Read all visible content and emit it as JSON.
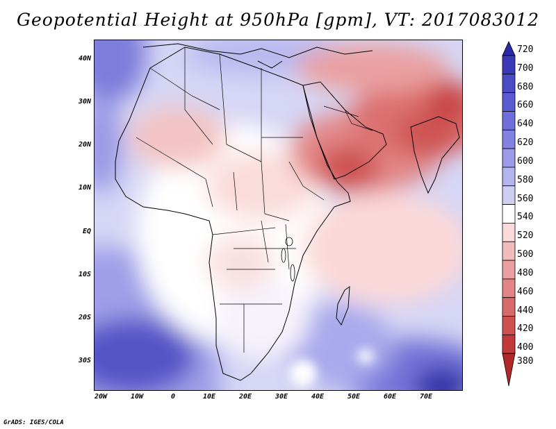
{
  "title": "Geopotential Height at 950hPa [gpm], VT: 2017083012",
  "credit": "GrADS: IGES/COLA",
  "map": {
    "region": "Africa and Arabian Peninsula",
    "lon_range": [
      -22,
      80
    ],
    "lat_range": [
      -37,
      45
    ],
    "lat_labels": [
      "40N",
      "30N",
      "20N",
      "10N",
      "EQ",
      "10S",
      "20S",
      "30S"
    ],
    "lon_labels": [
      "20W",
      "10W",
      "0",
      "10E",
      "20E",
      "30E",
      "40E",
      "50E",
      "60E",
      "70E"
    ]
  },
  "colorbar": {
    "levels": [
      "720",
      "700",
      "680",
      "660",
      "640",
      "620",
      "600",
      "580",
      "560",
      "540",
      "520",
      "500",
      "480",
      "460",
      "440",
      "420",
      "400",
      "380"
    ],
    "colors": [
      "#2a2aa6",
      "#3a3ab8",
      "#4b4bc6",
      "#5c5cd2",
      "#6f6fdb",
      "#8282e2",
      "#9b9be8",
      "#b4b4ef",
      "#cfcff6",
      "#ffffff",
      "#fadada",
      "#f3bcbc",
      "#eaa0a0",
      "#e38585",
      "#d96a6a",
      "#cf5050",
      "#c33a3a",
      "#b02828"
    ]
  }
}
